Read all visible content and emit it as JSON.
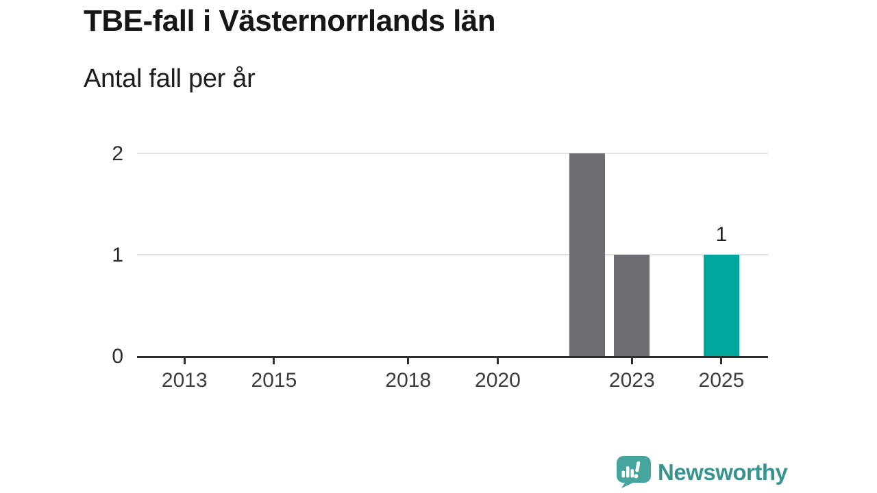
{
  "title": "TBE-fall i Västernorrlands län",
  "subtitle": "Antal fall per år",
  "logo": {
    "brand": "Newsworthy",
    "icon": "speech-bubble-with-bar-chart-and-exclamation"
  },
  "colors": {
    "bar_default": "#6e6b71",
    "bar_highlight": "#00a69b",
    "axis": "#2e2e2e",
    "gridline": "#e2e2e2",
    "logo_teal": "#45a49c",
    "logo_text": "#37948d",
    "title_text": "#161616",
    "tick_text": "#3d3d3d"
  },
  "chart_data": {
    "type": "bar",
    "title": "TBE-fall i Västernorrlands län",
    "subtitle": "Antal fall per år",
    "categories": [
      2012,
      2013,
      2014,
      2015,
      2016,
      2017,
      2018,
      2019,
      2020,
      2021,
      2022,
      2023,
      2024,
      2025
    ],
    "values": [
      0,
      0,
      0,
      0,
      0,
      0,
      0,
      0,
      0,
      0,
      2,
      1,
      0,
      1
    ],
    "highlight_category": 2025,
    "bar_annotations": [
      {
        "category": 2025,
        "label": "1"
      }
    ],
    "x_tick_labels": [
      "2013",
      "2015",
      "2018",
      "2020",
      "2023",
      "2025"
    ],
    "y_tick_labels": [
      "0",
      "1",
      "2"
    ],
    "ylim": [
      0,
      2
    ],
    "grid": "horizontal-only",
    "legend": "none"
  }
}
